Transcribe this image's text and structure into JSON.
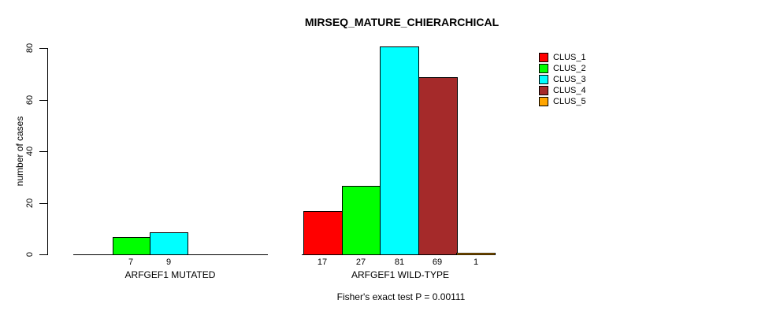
{
  "title": "MIRSEQ_MATURE_CHIERARCHICAL",
  "footer": "Fisher's exact test P = 0.00111",
  "chart_data": {
    "type": "bar",
    "title": "MIRSEQ_MATURE_CHIERARCHICAL",
    "ylabel": "number of cases",
    "xlabel": "",
    "ylim": [
      0,
      80
    ],
    "yticks": [
      0,
      20,
      40,
      60,
      80
    ],
    "grid": false,
    "legend_position": "right",
    "bar_borders": "#000000",
    "categories": [
      "ARFGEF1 MUTATED",
      "ARFGEF1 WILD-TYPE"
    ],
    "series": [
      {
        "name": "CLUS_1",
        "color": "#FF0000",
        "values": [
          0,
          17
        ]
      },
      {
        "name": "CLUS_2",
        "color": "#00FF00",
        "values": [
          7,
          27
        ]
      },
      {
        "name": "CLUS_3",
        "color": "#00FFFF",
        "values": [
          9,
          81
        ]
      },
      {
        "name": "CLUS_4",
        "color": "#A52A2A",
        "values": [
          0,
          69
        ]
      },
      {
        "name": "CLUS_5",
        "color": "#FFA500",
        "values": [
          0,
          1
        ]
      }
    ],
    "bar_value_labels": {
      "group_0": [
        null,
        7,
        9,
        null,
        null
      ],
      "group_1": [
        17,
        27,
        81,
        69,
        1
      ]
    },
    "annotation": "Fisher's exact test P = 0.00111"
  }
}
